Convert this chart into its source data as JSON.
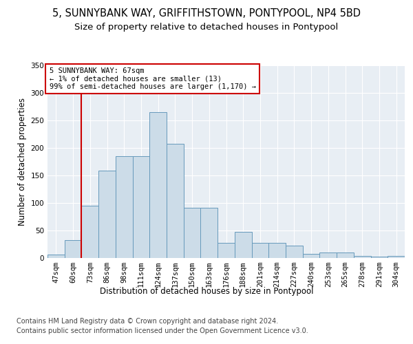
{
  "title": "5, SUNNYBANK WAY, GRIFFITHSTOWN, PONTYPOOL, NP4 5BD",
  "subtitle": "Size of property relative to detached houses in Pontypool",
  "xlabel": "Distribution of detached houses by size in Pontypool",
  "ylabel": "Number of detached properties",
  "bar_labels": [
    "47sqm",
    "60sqm",
    "73sqm",
    "86sqm",
    "98sqm",
    "111sqm",
    "124sqm",
    "137sqm",
    "150sqm",
    "163sqm",
    "176sqm",
    "188sqm",
    "201sqm",
    "214sqm",
    "227sqm",
    "240sqm",
    "253sqm",
    "265sqm",
    "278sqm",
    "291sqm",
    "304sqm"
  ],
  "bar_values": [
    6,
    33,
    95,
    159,
    185,
    185,
    265,
    207,
    91,
    91,
    27,
    47,
    28,
    28,
    22,
    8,
    10,
    10,
    4,
    2,
    4
  ],
  "bar_color": "#ccdce8",
  "bar_edge_color": "#6699bb",
  "vline_color": "#cc0000",
  "annotation_text": "5 SUNNYBANK WAY: 67sqm\n← 1% of detached houses are smaller (13)\n99% of semi-detached houses are larger (1,170) →",
  "annotation_box_color": "#ffffff",
  "annotation_box_edge": "#cc0000",
  "ylim": [
    0,
    350
  ],
  "yticks": [
    0,
    50,
    100,
    150,
    200,
    250,
    300,
    350
  ],
  "footer1": "Contains HM Land Registry data © Crown copyright and database right 2024.",
  "footer2": "Contains public sector information licensed under the Open Government Licence v3.0.",
  "bg_color": "#ffffff",
  "plot_bg_color": "#e8eef4",
  "title_fontsize": 10.5,
  "subtitle_fontsize": 9.5,
  "axis_label_fontsize": 8.5,
  "tick_fontsize": 7.5,
  "footer_fontsize": 7.0
}
